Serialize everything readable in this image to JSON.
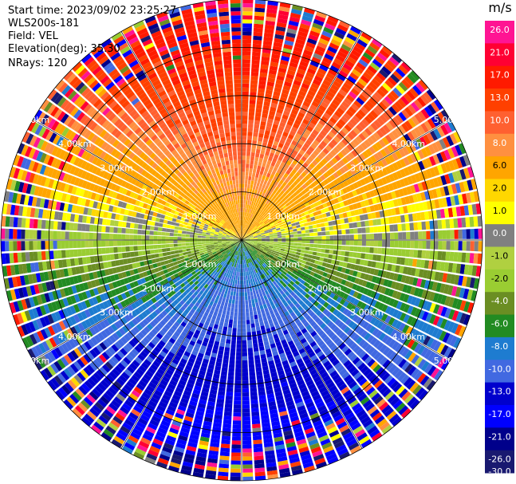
{
  "header": {
    "start_time": "Start time: 2023/09/02 23:25:27",
    "site": "WLS200s-181",
    "field": "Field: VEL",
    "elevation": "Elevation(deg): 35.30",
    "nrays": "NRays: 120"
  },
  "colorbar": {
    "unit": "m/s",
    "ticks": [
      "26.0",
      "21.0",
      "17.0",
      "13.0",
      "10.0",
      "8.0",
      "6.0",
      "2.0",
      "1.0",
      "0.0",
      "-1.0",
      "-2.0",
      "-4.0",
      "-6.0",
      "-8.0",
      "-10.0",
      "-13.0",
      "-17.0",
      "-21.0",
      "-26.0",
      "-30.0"
    ],
    "colors": [
      "#ff1493",
      "#ff0033",
      "#ff1a00",
      "#ff4000",
      "#ff6030",
      "#ff9040",
      "#ffa500",
      "#ffd700",
      "#ffff00",
      "#808080",
      "#b0d040",
      "#9acd32",
      "#6b8e23",
      "#228b22",
      "#1e7cd0",
      "#4169e1",
      "#0000cd",
      "#0000ff",
      "#00008b",
      "#191970"
    ]
  },
  "chart_data": {
    "type": "ppi",
    "field": "VEL",
    "n_rays": 120,
    "range_rings_km": [
      1.0,
      2.0,
      3.0,
      4.0,
      5.0
    ],
    "ring_labels": [
      "1.00km",
      "2.00km",
      "3.00km",
      "4.00km",
      "5.00km"
    ],
    "max_range_km": 5.0,
    "value_range": [
      -30,
      26
    ]
  }
}
